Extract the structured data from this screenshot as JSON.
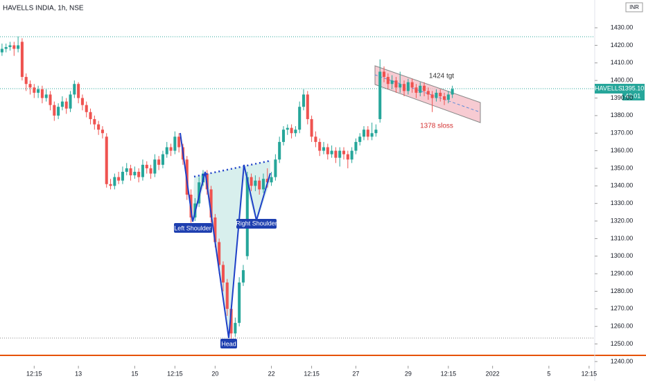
{
  "chart_data": {
    "type": "candlestick",
    "title": "HAVELLS INDIA, 1h, NSE",
    "currency": "INR",
    "symbol": "HAVELLS",
    "price_tag": "1395.10",
    "countdown": "42:01",
    "annotations": [
      "Left Shoulder",
      "Head",
      "Right Shoulder",
      "1424 tgt",
      "1378 sloss"
    ],
    "up_color": "#26a69a",
    "down_color": "#ef5350",
    "open": [
      1416,
      1418,
      1419,
      1420,
      1418,
      1422,
      1402,
      1398,
      1396,
      1393,
      1395,
      1390,
      1392,
      1386,
      1380,
      1385,
      1388,
      1384,
      1392,
      1398,
      1390,
      1386,
      1382,
      1378,
      1375,
      1372,
      1368,
      1341,
      1340,
      1345,
      1343,
      1348,
      1350,
      1346,
      1348,
      1345,
      1352,
      1350,
      1347,
      1355,
      1352,
      1358,
      1362,
      1360,
      1368,
      1362,
      1355,
      1335,
      1322,
      1330,
      1342,
      1347,
      1338,
      1322,
      1308,
      1295,
      1285,
      1270,
      1256,
      1262,
      1285,
      1300,
      1345,
      1340,
      1343,
      1338,
      1344,
      1342,
      1345,
      1355,
      1365,
      1372,
      1373,
      1370,
      1372,
      1385,
      1392,
      1378,
      1368,
      1365,
      1360,
      1362,
      1358,
      1360,
      1356,
      1360,
      1358,
      1355,
      1360,
      1365,
      1368,
      1372,
      1368,
      1370,
      1378,
      1405,
      1402,
      1398,
      1400,
      1396,
      1398,
      1394,
      1399,
      1396,
      1393,
      1397,
      1394,
      1392,
      1390,
      1393,
      1391,
      1389,
      1392
    ],
    "high": [
      1421,
      1421,
      1422,
      1422,
      1425,
      1424,
      1404,
      1400,
      1398,
      1397,
      1397,
      1395,
      1394,
      1388,
      1387,
      1391,
      1390,
      1394,
      1400,
      1399,
      1392,
      1388,
      1384,
      1380,
      1377,
      1374,
      1370,
      1344,
      1347,
      1348,
      1351,
      1353,
      1352,
      1351,
      1350,
      1355,
      1354,
      1352,
      1358,
      1357,
      1360,
      1365,
      1364,
      1371,
      1370,
      1364,
      1357,
      1338,
      1333,
      1345,
      1349,
      1349,
      1340,
      1324,
      1310,
      1297,
      1287,
      1272,
      1265,
      1288,
      1295,
      1348,
      1347,
      1346,
      1345,
      1347,
      1350,
      1348,
      1358,
      1368,
      1374,
      1375,
      1375,
      1374,
      1388,
      1395,
      1394,
      1380,
      1371,
      1367,
      1365,
      1364,
      1363,
      1362,
      1362,
      1362,
      1360,
      1362,
      1367,
      1370,
      1374,
      1374,
      1376,
      1375,
      1412,
      1408,
      1404,
      1403,
      1402,
      1405,
      1400,
      1401,
      1401,
      1398,
      1399,
      1399,
      1396,
      1394,
      1395,
      1395,
      1393,
      1394,
      1397
    ],
    "low": [
      1414,
      1416,
      1417,
      1414,
      1416,
      1400,
      1394,
      1392,
      1390,
      1390,
      1387,
      1388,
      1383,
      1377,
      1378,
      1383,
      1381,
      1382,
      1390,
      1387,
      1383,
      1379,
      1375,
      1372,
      1369,
      1367,
      1339,
      1338,
      1338,
      1341,
      1341,
      1346,
      1343,
      1344,
      1342,
      1343,
      1347,
      1344,
      1345,
      1349,
      1350,
      1356,
      1357,
      1358,
      1359,
      1352,
      1332,
      1319,
      1320,
      1328,
      1340,
      1335,
      1319,
      1305,
      1290,
      1280,
      1266,
      1253,
      1254,
      1260,
      1283,
      1298,
      1337,
      1337,
      1335,
      1336,
      1339,
      1340,
      1343,
      1353,
      1363,
      1369,
      1367,
      1368,
      1370,
      1383,
      1375,
      1365,
      1362,
      1357,
      1358,
      1355,
      1356,
      1353,
      1351,
      1355,
      1350,
      1353,
      1358,
      1363,
      1366,
      1366,
      1366,
      1368,
      1376,
      1399,
      1395,
      1395,
      1393,
      1393,
      1391,
      1392,
      1393,
      1390,
      1391,
      1391,
      1389,
      1382,
      1388,
      1388,
      1386,
      1387,
      1390
    ],
    "close": [
      1418,
      1419,
      1420,
      1418,
      1420,
      1402,
      1398,
      1396,
      1393,
      1395,
      1390,
      1392,
      1386,
      1380,
      1385,
      1388,
      1384,
      1392,
      1398,
      1390,
      1386,
      1382,
      1378,
      1375,
      1372,
      1370,
      1341,
      1340,
      1345,
      1343,
      1348,
      1350,
      1346,
      1348,
      1345,
      1352,
      1350,
      1347,
      1355,
      1352,
      1358,
      1362,
      1360,
      1368,
      1362,
      1355,
      1335,
      1322,
      1330,
      1342,
      1347,
      1338,
      1322,
      1308,
      1295,
      1285,
      1270,
      1256,
      1262,
      1285,
      1292,
      1345,
      1340,
      1343,
      1338,
      1344,
      1342,
      1345,
      1355,
      1365,
      1372,
      1373,
      1370,
      1372,
      1385,
      1392,
      1378,
      1368,
      1365,
      1360,
      1362,
      1358,
      1360,
      1356,
      1360,
      1358,
      1355,
      1360,
      1365,
      1368,
      1372,
      1368,
      1370,
      1372,
      1405,
      1402,
      1398,
      1400,
      1396,
      1398,
      1394,
      1399,
      1396,
      1393,
      1397,
      1394,
      1392,
      1390,
      1393,
      1391,
      1389,
      1392,
      1395.1
    ],
    "xlim": [
      -0.5,
      147.4
    ],
    "xticks": [
      {
        "value": 8,
        "label": "12:15"
      },
      {
        "value": 19,
        "label": "13"
      },
      {
        "value": 33,
        "label": "15"
      },
      {
        "value": 43,
        "label": "12:15"
      },
      {
        "value": 53,
        "label": "20"
      },
      {
        "value": 67,
        "label": "22"
      },
      {
        "value": 77,
        "label": "12:15"
      },
      {
        "value": 88,
        "label": "27"
      },
      {
        "value": 101,
        "label": "29"
      },
      {
        "value": 111,
        "label": "12:15"
      },
      {
        "value": 122,
        "label": "2022"
      },
      {
        "value": 136,
        "label": "5"
      },
      {
        "value": 146,
        "label": "12:15"
      }
    ],
    "ylim": [
      1237.6,
      1445.8
    ],
    "yticks": [
      {
        "value": 1240,
        "label": "1240.00"
      },
      {
        "value": 1250,
        "label": "1250.00"
      },
      {
        "value": 1260,
        "label": "1260.00"
      },
      {
        "value": 1270,
        "label": "1270.00"
      },
      {
        "value": 1280,
        "label": "1280.00"
      },
      {
        "value": 1290,
        "label": "1290.00"
      },
      {
        "value": 1300,
        "label": "1300.00"
      },
      {
        "value": 1310,
        "label": "1310.00"
      },
      {
        "value": 1320,
        "label": "1320.00"
      },
      {
        "value": 1330,
        "label": "1330.00"
      },
      {
        "value": 1340,
        "label": "1340.00"
      },
      {
        "value": 1350,
        "label": "1350.00"
      },
      {
        "value": 1360,
        "label": "1360.00"
      },
      {
        "value": 1370,
        "label": "1370.00"
      },
      {
        "value": 1380,
        "label": "1380.00"
      },
      {
        "value": 1390,
        "label": "1390.00"
      },
      {
        "value": 1400,
        "label": "1400.00"
      },
      {
        "value": 1410,
        "label": "1410.00"
      },
      {
        "value": 1420,
        "label": "1420.00"
      },
      {
        "value": 1430,
        "label": "1430.00"
      }
    ]
  }
}
